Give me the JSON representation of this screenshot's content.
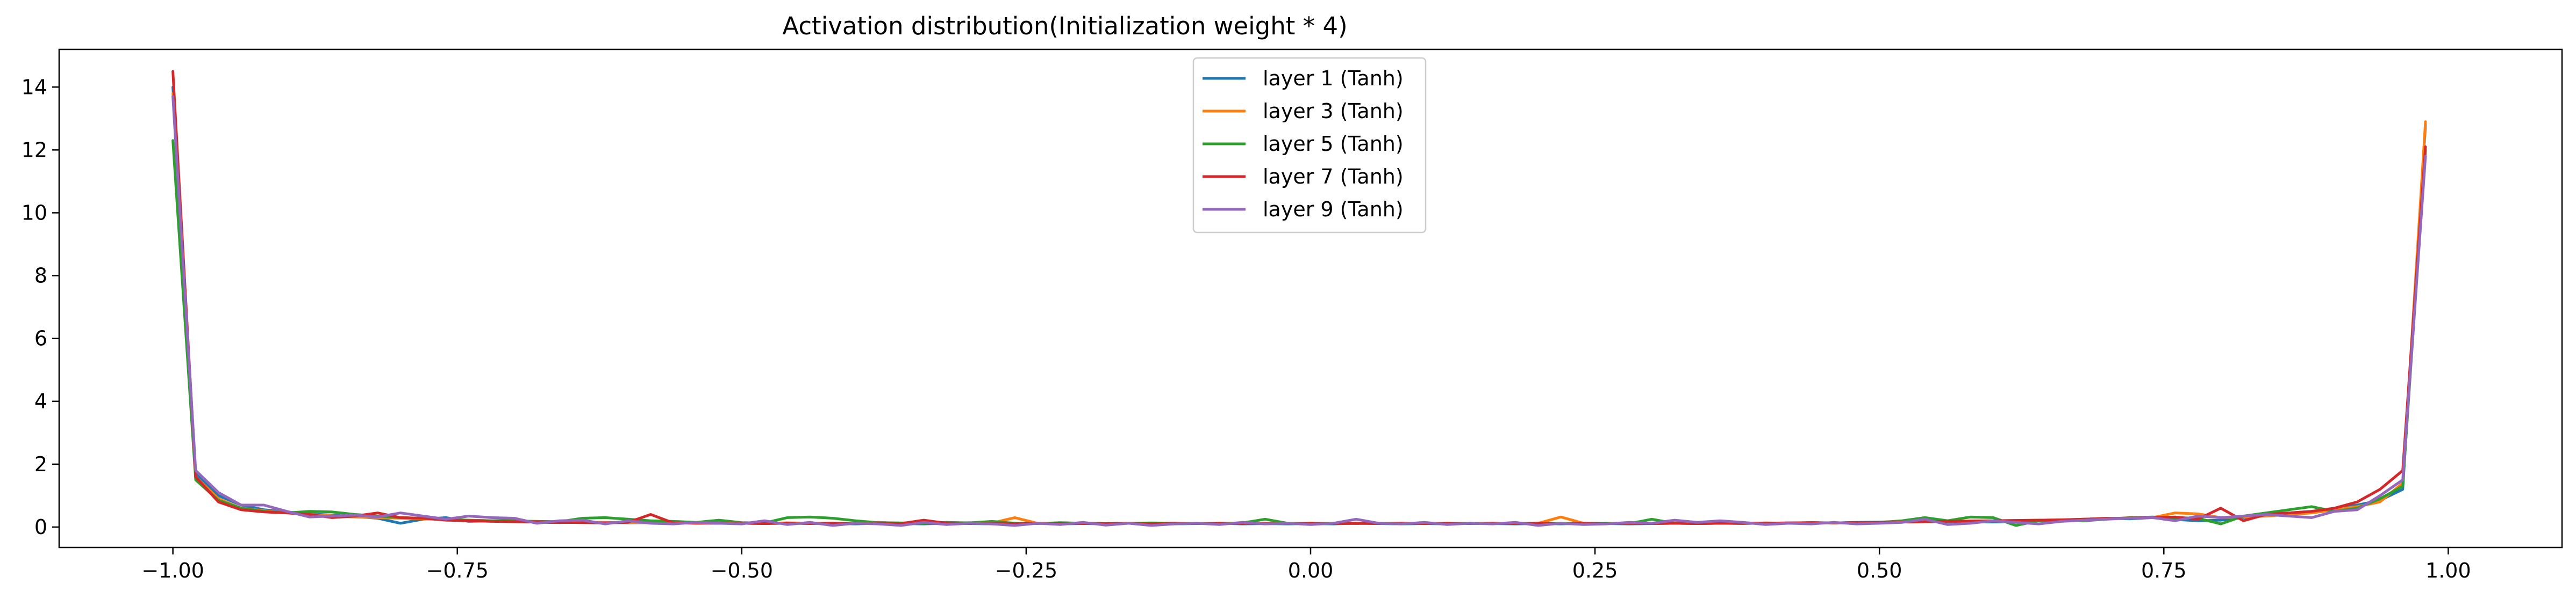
{
  "chart_data": {
    "type": "line",
    "title": "Activation distribution(Initialization weight * 4)",
    "xlabel": "",
    "ylabel": "",
    "xlim": [
      -1.1,
      1.1
    ],
    "ylim": [
      -0.65,
      15.2
    ],
    "grid": false,
    "legend_position": "top-center",
    "x_ticks": [
      -1.0,
      -0.75,
      -0.5,
      -0.25,
      0.0,
      0.25,
      0.5,
      0.75,
      1.0
    ],
    "x_tick_labels": [
      "−1.00",
      "−0.75",
      "−0.50",
      "−0.25",
      "0.00",
      "0.25",
      "0.50",
      "0.75",
      "1.00"
    ],
    "y_ticks": [
      0,
      2,
      4,
      6,
      8,
      10,
      12,
      14
    ],
    "y_tick_labels": [
      "0",
      "2",
      "4",
      "6",
      "8",
      "10",
      "12",
      "14"
    ],
    "x": [
      -1.0,
      -0.98,
      -0.96,
      -0.94,
      -0.92,
      -0.9,
      -0.88,
      -0.86,
      -0.84,
      -0.82,
      -0.8,
      -0.78,
      -0.76,
      -0.74,
      -0.72,
      -0.7,
      -0.68,
      -0.66,
      -0.64,
      -0.62,
      -0.6,
      -0.58,
      -0.56,
      -0.54,
      -0.52,
      -0.5,
      -0.48,
      -0.46,
      -0.44,
      -0.42,
      -0.4,
      -0.38,
      -0.36,
      -0.34,
      -0.32,
      -0.3,
      -0.28,
      -0.26,
      -0.24,
      -0.22,
      -0.2,
      -0.18,
      -0.16,
      -0.14,
      -0.12,
      -0.1,
      -0.08,
      -0.06,
      -0.04,
      -0.02,
      0.0,
      0.02,
      0.04,
      0.06,
      0.08,
      0.1,
      0.12,
      0.14,
      0.16,
      0.18,
      0.2,
      0.22,
      0.24,
      0.26,
      0.28,
      0.3,
      0.32,
      0.34,
      0.36,
      0.38,
      0.4,
      0.42,
      0.44,
      0.46,
      0.48,
      0.5,
      0.52,
      0.54,
      0.56,
      0.58,
      0.6,
      0.62,
      0.64,
      0.66,
      0.68,
      0.7,
      0.72,
      0.74,
      0.76,
      0.78,
      0.8,
      0.82,
      0.84,
      0.86,
      0.88,
      0.9,
      0.92,
      0.94,
      0.96,
      0.98
    ],
    "series": [
      {
        "name": "layer 1 (Tanh)",
        "color": "#1f77b4",
        "values": [
          14.0,
          1.7,
          1.0,
          0.7,
          0.55,
          0.48,
          0.42,
          0.38,
          0.33,
          0.28,
          0.12,
          0.25,
          0.3,
          0.18,
          0.2,
          0.22,
          0.15,
          0.14,
          0.16,
          0.15,
          0.13,
          0.14,
          0.12,
          0.14,
          0.13,
          0.12,
          0.11,
          0.13,
          0.12,
          0.11,
          0.1,
          0.12,
          0.11,
          0.1,
          0.12,
          0.11,
          0.1,
          0.11,
          0.12,
          0.1,
          0.11,
          0.1,
          0.12,
          0.11,
          0.1,
          0.11,
          0.12,
          0.1,
          0.11,
          0.1,
          0.11,
          0.1,
          0.12,
          0.11,
          0.1,
          0.11,
          0.1,
          0.12,
          0.11,
          0.1,
          0.11,
          0.1,
          0.12,
          0.11,
          0.1,
          0.11,
          0.12,
          0.13,
          0.12,
          0.11,
          0.13,
          0.12,
          0.14,
          0.13,
          0.15,
          0.16,
          0.18,
          0.2,
          0.18,
          0.17,
          0.16,
          0.18,
          0.2,
          0.22,
          0.25,
          0.28,
          0.26,
          0.3,
          0.24,
          0.2,
          0.22,
          0.3,
          0.38,
          0.45,
          0.5,
          0.6,
          0.7,
          0.85,
          1.2,
          12.8
        ]
      },
      {
        "name": "layer 3 (Tanh)",
        "color": "#ff7f0e",
        "values": [
          13.8,
          1.6,
          0.9,
          0.6,
          0.52,
          0.45,
          0.4,
          0.36,
          0.32,
          0.3,
          0.28,
          0.26,
          0.24,
          0.22,
          0.2,
          0.19,
          0.18,
          0.17,
          0.16,
          0.15,
          0.14,
          0.14,
          0.13,
          0.13,
          0.12,
          0.12,
          0.12,
          0.13,
          0.12,
          0.12,
          0.11,
          0.15,
          0.12,
          0.18,
          0.12,
          0.14,
          0.13,
          0.3,
          0.12,
          0.11,
          0.12,
          0.11,
          0.12,
          0.11,
          0.12,
          0.11,
          0.12,
          0.11,
          0.12,
          0.11,
          0.12,
          0.11,
          0.12,
          0.11,
          0.12,
          0.11,
          0.12,
          0.11,
          0.12,
          0.11,
          0.12,
          0.32,
          0.12,
          0.11,
          0.12,
          0.11,
          0.12,
          0.11,
          0.12,
          0.13,
          0.12,
          0.13,
          0.14,
          0.13,
          0.14,
          0.15,
          0.16,
          0.17,
          0.18,
          0.19,
          0.2,
          0.21,
          0.22,
          0.23,
          0.25,
          0.27,
          0.29,
          0.3,
          0.45,
          0.42,
          0.3,
          0.32,
          0.35,
          0.4,
          0.45,
          0.55,
          0.65,
          0.8,
          1.4,
          12.9
        ]
      },
      {
        "name": "layer 5 (Tanh)",
        "color": "#2ca02c",
        "values": [
          12.3,
          1.5,
          0.85,
          0.6,
          0.5,
          0.45,
          0.5,
          0.48,
          0.4,
          0.35,
          0.3,
          0.28,
          0.25,
          0.22,
          0.2,
          0.19,
          0.18,
          0.17,
          0.28,
          0.3,
          0.25,
          0.2,
          0.18,
          0.15,
          0.22,
          0.14,
          0.13,
          0.3,
          0.32,
          0.28,
          0.2,
          0.14,
          0.13,
          0.12,
          0.15,
          0.13,
          0.18,
          0.12,
          0.11,
          0.14,
          0.12,
          0.11,
          0.12,
          0.13,
          0.12,
          0.11,
          0.12,
          0.13,
          0.25,
          0.12,
          0.11,
          0.12,
          0.11,
          0.12,
          0.11,
          0.12,
          0.11,
          0.12,
          0.11,
          0.12,
          0.11,
          0.12,
          0.11,
          0.12,
          0.11,
          0.25,
          0.12,
          0.11,
          0.12,
          0.13,
          0.12,
          0.13,
          0.14,
          0.13,
          0.14,
          0.15,
          0.2,
          0.3,
          0.2,
          0.32,
          0.3,
          0.05,
          0.2,
          0.22,
          0.2,
          0.25,
          0.3,
          0.32,
          0.3,
          0.28,
          0.1,
          0.35,
          0.45,
          0.55,
          0.65,
          0.5,
          0.6,
          0.9,
          1.3,
          12.0
        ]
      },
      {
        "name": "layer 7 (Tanh)",
        "color": "#d62728",
        "values": [
          14.5,
          1.6,
          0.8,
          0.55,
          0.48,
          0.45,
          0.4,
          0.3,
          0.35,
          0.45,
          0.3,
          0.28,
          0.22,
          0.2,
          0.18,
          0.17,
          0.16,
          0.15,
          0.14,
          0.13,
          0.15,
          0.4,
          0.13,
          0.12,
          0.12,
          0.12,
          0.11,
          0.12,
          0.11,
          0.12,
          0.11,
          0.12,
          0.11,
          0.22,
          0.12,
          0.11,
          0.12,
          0.11,
          0.12,
          0.11,
          0.12,
          0.11,
          0.12,
          0.11,
          0.12,
          0.11,
          0.12,
          0.11,
          0.12,
          0.11,
          0.12,
          0.11,
          0.12,
          0.11,
          0.12,
          0.11,
          0.12,
          0.11,
          0.12,
          0.11,
          0.12,
          0.11,
          0.12,
          0.11,
          0.12,
          0.11,
          0.12,
          0.11,
          0.12,
          0.13,
          0.12,
          0.13,
          0.14,
          0.13,
          0.14,
          0.15,
          0.16,
          0.17,
          0.18,
          0.19,
          0.2,
          0.21,
          0.22,
          0.23,
          0.25,
          0.27,
          0.29,
          0.3,
          0.32,
          0.25,
          0.6,
          0.2,
          0.4,
          0.45,
          0.5,
          0.6,
          0.8,
          1.2,
          1.8,
          12.1
        ]
      },
      {
        "name": "layer 9 (Tanh)",
        "color": "#9467bd",
        "values": [
          13.7,
          1.8,
          1.1,
          0.7,
          0.7,
          0.5,
          0.32,
          0.35,
          0.38,
          0.32,
          0.45,
          0.35,
          0.25,
          0.35,
          0.3,
          0.28,
          0.12,
          0.2,
          0.22,
          0.1,
          0.2,
          0.12,
          0.1,
          0.15,
          0.12,
          0.1,
          0.2,
          0.08,
          0.15,
          0.05,
          0.12,
          0.1,
          0.05,
          0.15,
          0.08,
          0.12,
          0.1,
          0.05,
          0.12,
          0.08,
          0.15,
          0.06,
          0.12,
          0.05,
          0.1,
          0.12,
          0.08,
          0.15,
          0.1,
          0.12,
          0.08,
          0.12,
          0.25,
          0.12,
          0.1,
          0.15,
          0.08,
          0.12,
          0.1,
          0.15,
          0.05,
          0.12,
          0.08,
          0.1,
          0.15,
          0.12,
          0.22,
          0.15,
          0.2,
          0.15,
          0.08,
          0.12,
          0.1,
          0.15,
          0.1,
          0.12,
          0.15,
          0.25,
          0.08,
          0.12,
          0.2,
          0.15,
          0.1,
          0.18,
          0.22,
          0.25,
          0.28,
          0.3,
          0.2,
          0.35,
          0.3,
          0.35,
          0.4,
          0.35,
          0.3,
          0.5,
          0.55,
          1.0,
          1.5,
          11.8
        ]
      }
    ]
  }
}
